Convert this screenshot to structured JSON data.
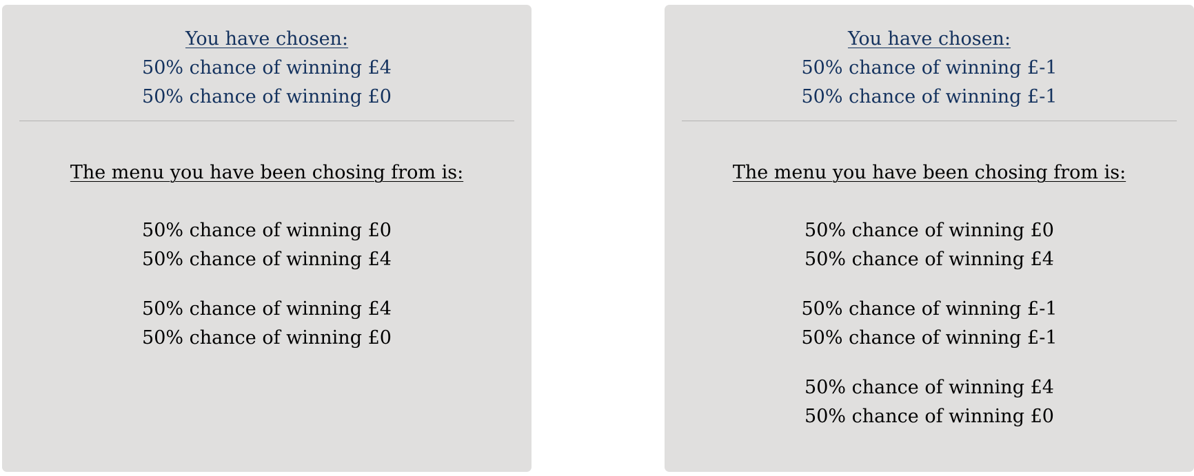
{
  "colors": {
    "panel_background": "#e0dfde",
    "chosen_text": "#14325e",
    "menu_text": "#000000",
    "divider": "#b2b1b0"
  },
  "panels": [
    {
      "chosen_heading": "You have chosen:",
      "chosen_lines": [
        "50% chance of winning £4",
        "50% chance of winning £0"
      ],
      "menu_heading": "The menu you have been chosing from is:",
      "options": [
        [
          "50% chance of winning £0",
          "50% chance of winning £4"
        ],
        [
          "50% chance of winning £4",
          "50% chance of winning £0"
        ]
      ]
    },
    {
      "chosen_heading": "You have chosen:",
      "chosen_lines": [
        "50% chance of winning £-1",
        "50% chance of winning £-1"
      ],
      "menu_heading": "The menu you have been chosing from is:",
      "options": [
        [
          "50% chance of winning £0",
          "50% chance of winning £4"
        ],
        [
          "50% chance of winning £-1",
          "50% chance of winning £-1"
        ],
        [
          "50% chance of winning £4",
          "50% chance of winning £0"
        ]
      ]
    }
  ]
}
